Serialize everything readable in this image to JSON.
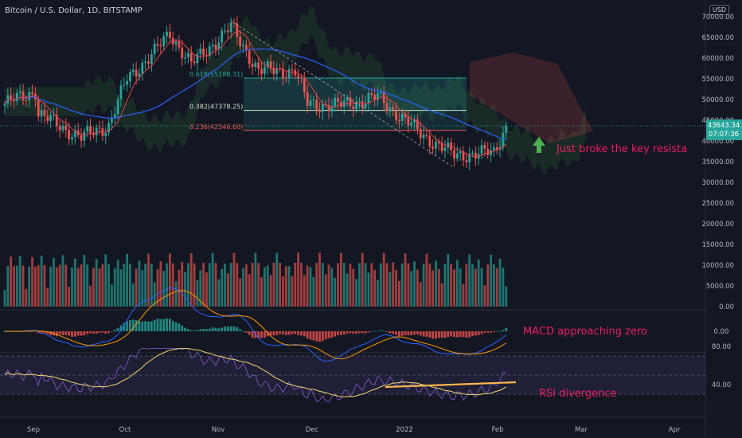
{
  "header": {
    "title": "Bitcoin / U.S. Dollar, 1D, BITSTAMP",
    "currency": "USD"
  },
  "price_axis": {
    "ticks": [
      "70000.00",
      "65000.00",
      "60000.00",
      "55000.00",
      "50000.00",
      "45000.00",
      "40000.00",
      "35000.00",
      "30000.00",
      "25000.00",
      "20000.00",
      "15000.00",
      "10000.00",
      "5000.00",
      "0.00"
    ]
  },
  "last_price": {
    "value": "43643.34",
    "countdown": "07:07:36",
    "color": "#26a69a"
  },
  "fib": {
    "levels": [
      {
        "label": "0.618(55188.31)",
        "price": 55188.31,
        "color": "#26a69a"
      },
      {
        "label": "0.382(47378.25)",
        "price": 47378.25,
        "color": "#c8e6c9"
      },
      {
        "label": "0.236(42546.60)",
        "price": 42546.6,
        "color": "#ef5350"
      }
    ]
  },
  "macd": {
    "tick": "0.00"
  },
  "rsi": {
    "ticks": [
      "80.00",
      "40.00"
    ]
  },
  "time_axis": {
    "labels": [
      "Sep",
      "Oct",
      "Nov",
      "Dec",
      "2022",
      "Feb",
      "Mar",
      "Apr"
    ]
  },
  "annotations": {
    "breakout": "Just broke the key resista",
    "macd": "MACD approaching zero",
    "rsi": "RSI divergence"
  },
  "colors": {
    "up": "#26a69a",
    "down": "#ef5350",
    "ema_fast": "#e0424b",
    "ma_slow": "#2962ff",
    "annotation": "#e91e63",
    "arrow": "#4caf50",
    "trendline": "#ffb74d",
    "rsi_line": "#7e57c2",
    "rsi_ma": "#f5d76e"
  },
  "chart_data": {
    "type": "candlestick",
    "title": "Bitcoin / U.S. Dollar, 1D, BITSTAMP",
    "ylim": [
      0,
      72000
    ],
    "x_labels": [
      "Sep",
      "Oct",
      "Nov",
      "Dec",
      "2022",
      "Feb",
      "Mar",
      "Apr"
    ],
    "price_keypoints": [
      {
        "date": "2021-08-27",
        "close": 49000
      },
      {
        "date": "2021-09-06",
        "close": 52000
      },
      {
        "date": "2021-09-07",
        "close": 46500
      },
      {
        "date": "2021-09-21",
        "close": 40800
      },
      {
        "date": "2021-09-30",
        "close": 43800
      },
      {
        "date": "2021-10-06",
        "close": 55000
      },
      {
        "date": "2021-10-15",
        "close": 61500
      },
      {
        "date": "2021-10-20",
        "close": 66000
      },
      {
        "date": "2021-10-27",
        "close": 58500
      },
      {
        "date": "2021-11-09",
        "close": 67500
      },
      {
        "date": "2021-11-18",
        "close": 57000
      },
      {
        "date": "2021-11-30",
        "close": 57000
      },
      {
        "date": "2021-12-04",
        "close": 49000
      },
      {
        "date": "2021-12-14",
        "close": 48500
      },
      {
        "date": "2021-12-27",
        "close": 50600
      },
      {
        "date": "2022-01-10",
        "close": 41800
      },
      {
        "date": "2022-01-21",
        "close": 36500
      },
      {
        "date": "2022-01-24",
        "close": 36700
      },
      {
        "date": "2022-02-03",
        "close": 37200
      },
      {
        "date": "2022-02-07",
        "close": 43643
      }
    ],
    "last_price": 43643.34
  }
}
